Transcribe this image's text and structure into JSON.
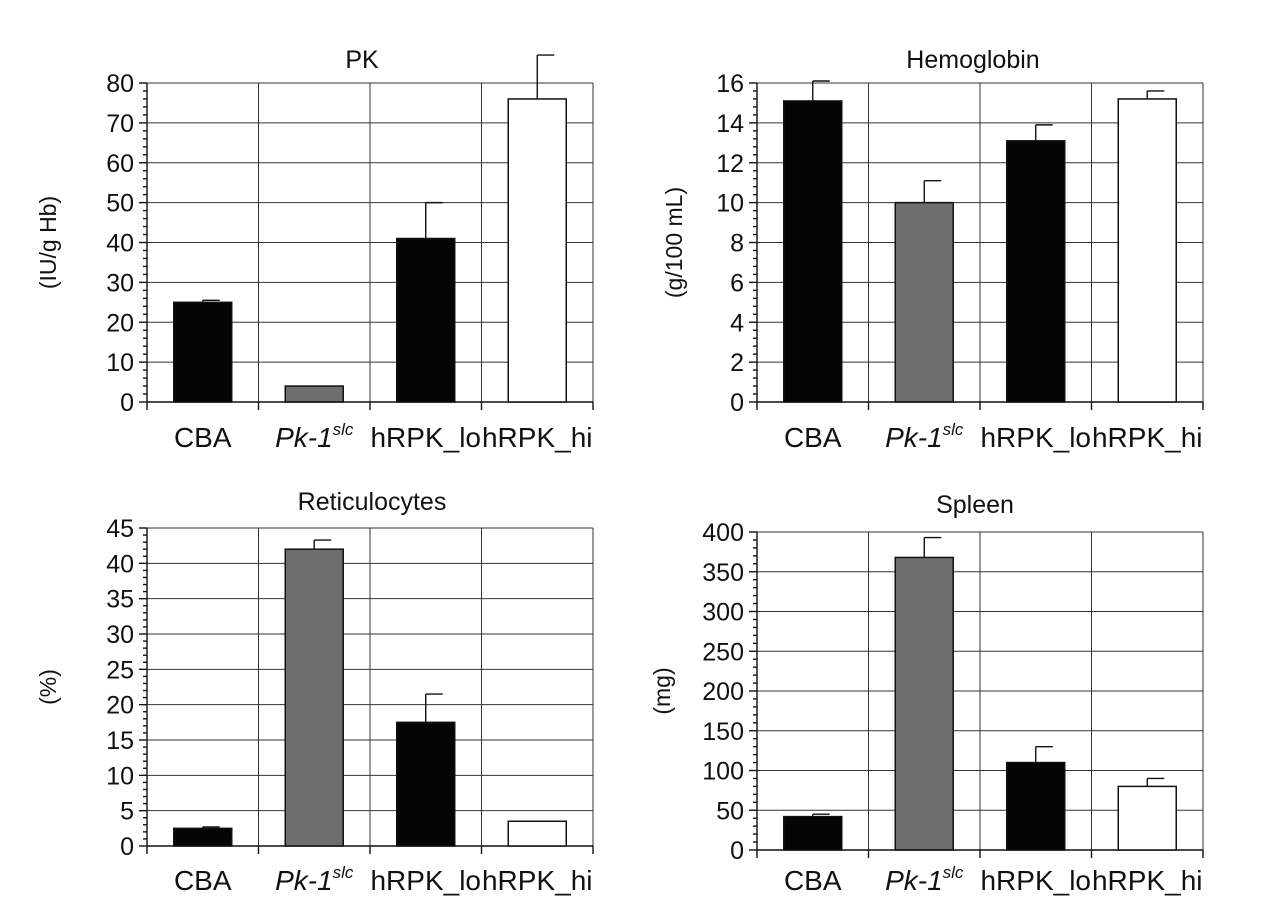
{
  "colors": {
    "black": "#050505",
    "gray": "#6e6e6e",
    "white": "#ffffff"
  },
  "chart_data": [
    {
      "type": "bar",
      "title": "PK",
      "ylabel": "(IU/g Hb)",
      "categories": [
        "CBA",
        "Pk-1slc",
        "hRPK_lo",
        "hRPK_hi"
      ],
      "category_display": [
        {
          "text": "CBA"
        },
        {
          "text": "Pk-1",
          "sup": "slc"
        },
        {
          "text": "hRPK_lo"
        },
        {
          "text": "hRPK_hi"
        }
      ],
      "values": [
        25,
        4,
        41,
        76
      ],
      "errors": [
        0.5,
        0,
        9,
        11
      ],
      "bar_colors": [
        "black",
        "gray",
        "black",
        "white"
      ],
      "ylim": [
        0,
        80
      ],
      "yticks": [
        0,
        10,
        20,
        30,
        40,
        50,
        60,
        70,
        80
      ]
    },
    {
      "type": "bar",
      "title": "Hemoglobin",
      "ylabel": "(g/100 mL)",
      "categories": [
        "CBA",
        "Pk-1slc",
        "hRPK_lo",
        "hRPK_hi"
      ],
      "category_display": [
        {
          "text": "CBA"
        },
        {
          "text": "Pk-1",
          "sup": "slc"
        },
        {
          "text": "hRPK_lo"
        },
        {
          "text": "hRPK_hi"
        }
      ],
      "values": [
        15.1,
        10.0,
        13.1,
        15.2
      ],
      "errors": [
        1.0,
        1.1,
        0.8,
        0.4
      ],
      "bar_colors": [
        "black",
        "gray",
        "black",
        "white"
      ],
      "ylim": [
        0,
        16
      ],
      "yticks": [
        0,
        2,
        4,
        6,
        8,
        10,
        12,
        14,
        16
      ]
    },
    {
      "type": "bar",
      "title": "Reticulocytes",
      "ylabel": "(%)",
      "categories": [
        "CBA",
        "Pk-1slc",
        "hRPK_lo",
        "hRPK_hi"
      ],
      "category_display": [
        {
          "text": "CBA"
        },
        {
          "text": "Pk-1",
          "sup": "slc"
        },
        {
          "text": "hRPK_lo"
        },
        {
          "text": "hRPK_hi"
        }
      ],
      "values": [
        2.5,
        42,
        17.5,
        3.5
      ],
      "errors": [
        0.2,
        1.3,
        4,
        0
      ],
      "bar_colors": [
        "black",
        "gray",
        "black",
        "white"
      ],
      "ylim": [
        0,
        45
      ],
      "yticks": [
        0,
        5,
        10,
        15,
        20,
        25,
        30,
        35,
        40,
        45
      ]
    },
    {
      "type": "bar",
      "title": "Spleen",
      "ylabel": "(mg)",
      "categories": [
        "CBA",
        "Pk-1slc",
        "hRPK_lo",
        "hRPK_hi"
      ],
      "category_display": [
        {
          "text": "CBA"
        },
        {
          "text": "Pk-1",
          "sup": "slc"
        },
        {
          "text": "hRPK_lo"
        },
        {
          "text": "hRPK_hi"
        }
      ],
      "values": [
        42,
        368,
        110,
        80
      ],
      "errors": [
        3,
        25,
        20,
        10
      ],
      "bar_colors": [
        "black",
        "gray",
        "black",
        "white"
      ],
      "ylim": [
        0,
        400
      ],
      "yticks": [
        0,
        50,
        100,
        150,
        200,
        250,
        300,
        350,
        400
      ]
    }
  ]
}
